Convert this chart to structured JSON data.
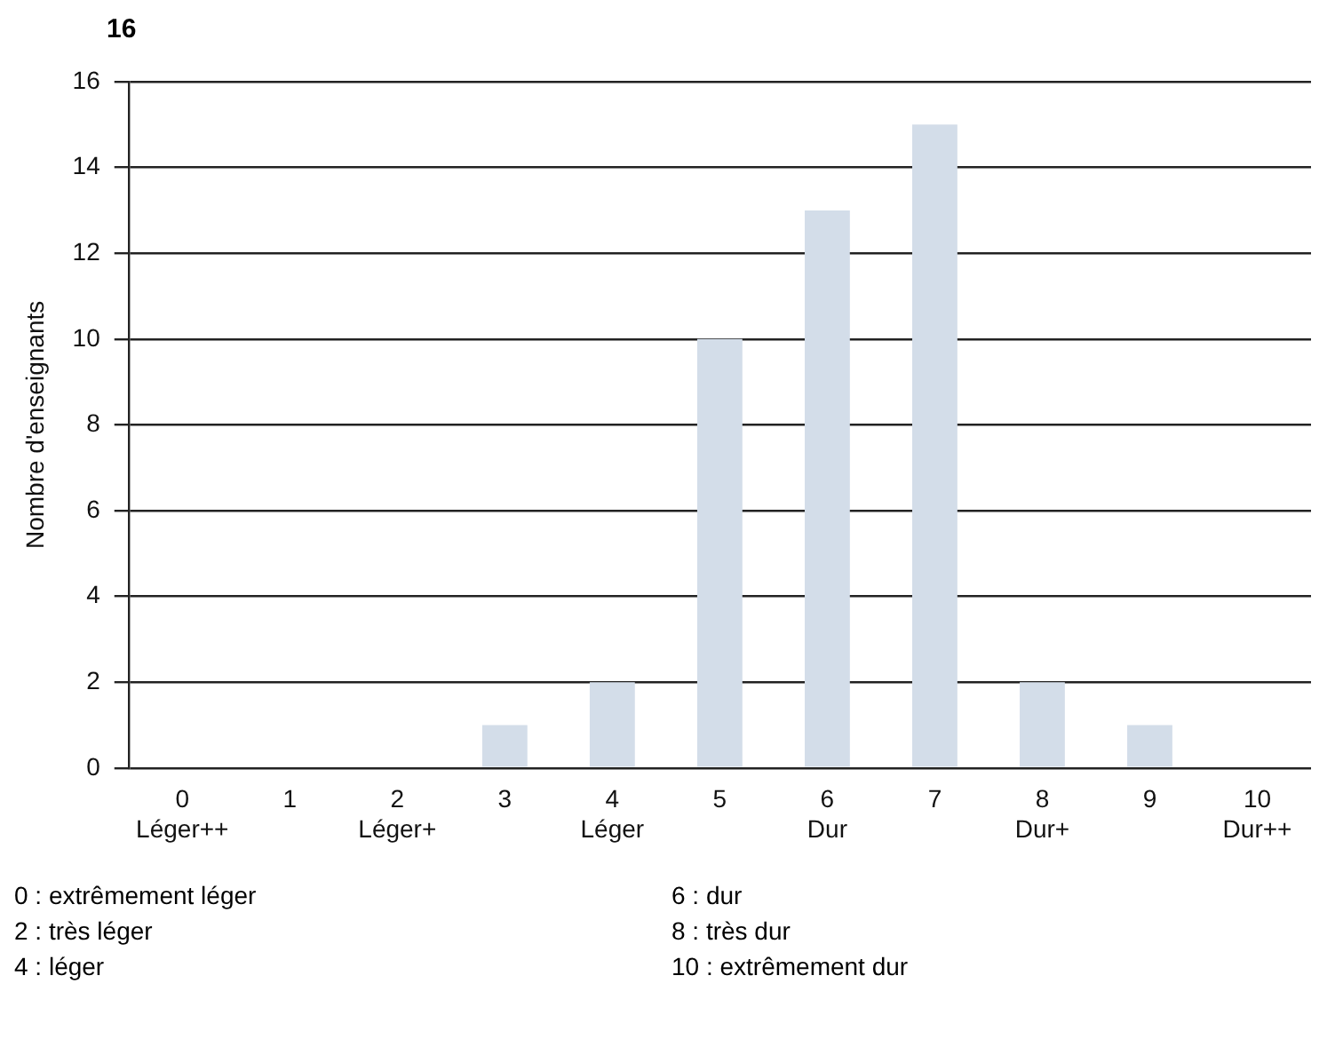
{
  "chart_data": {
    "type": "bar",
    "ylabel": "Nombre d'enseignants",
    "categories": [
      "0\nLéger++",
      "1",
      "2\nLéger+",
      "3",
      "4\nLéger",
      "5",
      "6\nDur",
      "7",
      "8\nDur+",
      "9",
      "10\nDur++"
    ],
    "values": [
      0,
      0,
      0,
      1,
      2,
      10,
      13,
      15,
      2,
      1,
      0
    ],
    "color": "#d3dde9",
    "ylim": [
      0,
      16
    ],
    "yticks": [
      0,
      2,
      4,
      6,
      8,
      10,
      12,
      14,
      16
    ],
    "grid": "y",
    "legend": false,
    "annotations": [
      "16",
      "0 : extrêmement léger",
      "2 : très léger",
      "4 : léger",
      "6 : dur",
      "8 : très dur",
      "10 : extrêmement dur"
    ]
  }
}
